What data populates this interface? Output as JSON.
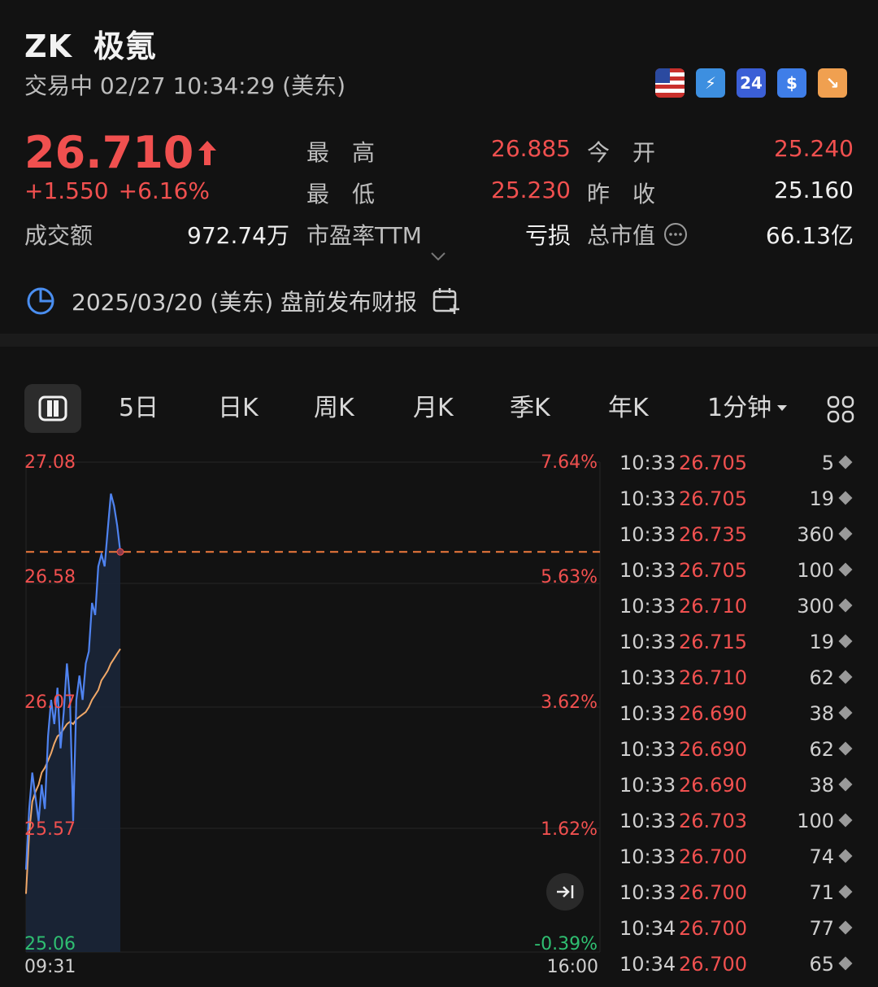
{
  "header": {
    "symbol": "ZK",
    "name": "极氪",
    "status": "交易中 02/27 10:34:29 (美东)",
    "badges": [
      {
        "icon": "us-flag-icon",
        "text": ""
      },
      {
        "icon": "lightning-icon",
        "text": "⚡"
      },
      {
        "icon": "24h-icon",
        "text": "24"
      },
      {
        "icon": "dollar-icon",
        "text": "$"
      },
      {
        "icon": "trend-down-icon",
        "text": "↘"
      }
    ]
  },
  "quote": {
    "price": "26.710",
    "change": "+1.550",
    "change_pct": "+6.16%",
    "high_label": "最　高",
    "high": "26.885",
    "open_label": "今　开",
    "open": "25.240",
    "low_label": "最　低",
    "low": "25.230",
    "prev_close_label": "昨　收",
    "prev_close": "25.160",
    "turnover_label": "成交额",
    "turnover": "972.74万",
    "pe_label": "市盈率TTM",
    "pe": "亏损",
    "mktcap_label": "总市值",
    "mktcap": "66.13亿"
  },
  "earnings": {
    "text": "2025/03/20 (美东) 盘前发布财报"
  },
  "tabs": [
    "5日",
    "日K",
    "周K",
    "月K",
    "季K",
    "年K",
    "1分钟"
  ],
  "chart": {
    "y_labels": [
      "27.08",
      "26.58",
      "26.07",
      "25.57",
      "25.06"
    ],
    "pct_labels": [
      "7.64%",
      "5.63%",
      "3.62%",
      "1.62%",
      "-0.39%"
    ],
    "x_start": "09:31",
    "x_end": "16:00"
  },
  "chart_data": {
    "type": "line",
    "title": "",
    "xlabel": "",
    "ylabel": "",
    "x_range": [
      "09:31",
      "16:00"
    ],
    "ylim": [
      25.06,
      27.08
    ],
    "reference_price": 26.71,
    "series": [
      {
        "values": [
          25.4,
          25.65,
          25.8,
          25.7,
          25.6,
          25.75,
          25.65,
          25.95,
          26.1,
          26.0,
          26.15,
          25.9,
          26.05,
          26.25,
          26.1,
          25.6,
          26.1,
          26.2,
          26.1,
          26.25,
          26.3,
          26.5,
          26.45,
          26.65,
          26.7,
          26.65,
          26.8,
          26.95,
          26.9,
          26.82,
          26.71
        ],
        "color": "#4f83f0"
      },
      {
        "values": [
          25.3,
          25.55,
          25.68,
          25.72,
          25.75,
          25.8,
          25.82,
          25.85,
          25.88,
          25.92,
          25.95,
          25.96,
          25.98,
          26.0,
          26.01,
          26.0,
          26.02,
          26.03,
          26.04,
          26.05,
          26.07,
          26.1,
          26.12,
          26.14,
          26.18,
          26.2,
          26.22,
          26.25,
          26.27,
          26.29,
          26.31
        ],
        "color": "#f0a868"
      }
    ]
  },
  "trades": [
    {
      "time": "10:33",
      "price": "26.705",
      "vol": "5"
    },
    {
      "time": "10:33",
      "price": "26.705",
      "vol": "19"
    },
    {
      "time": "10:33",
      "price": "26.735",
      "vol": "360"
    },
    {
      "time": "10:33",
      "price": "26.705",
      "vol": "100"
    },
    {
      "time": "10:33",
      "price": "26.710",
      "vol": "300"
    },
    {
      "time": "10:33",
      "price": "26.715",
      "vol": "19"
    },
    {
      "time": "10:33",
      "price": "26.710",
      "vol": "62"
    },
    {
      "time": "10:33",
      "price": "26.690",
      "vol": "38"
    },
    {
      "time": "10:33",
      "price": "26.690",
      "vol": "62"
    },
    {
      "time": "10:33",
      "price": "26.690",
      "vol": "38"
    },
    {
      "time": "10:33",
      "price": "26.703",
      "vol": "100"
    },
    {
      "time": "10:33",
      "price": "26.700",
      "vol": "74"
    },
    {
      "time": "10:33",
      "price": "26.700",
      "vol": "71"
    },
    {
      "time": "10:34",
      "price": "26.700",
      "vol": "77"
    },
    {
      "time": "10:34",
      "price": "26.700",
      "vol": "65"
    }
  ],
  "colors": {
    "up": "#f0504f",
    "down": "#2fbf71",
    "price_line": "#4f83f0",
    "avg_line": "#f0a868",
    "background": "#121212"
  }
}
